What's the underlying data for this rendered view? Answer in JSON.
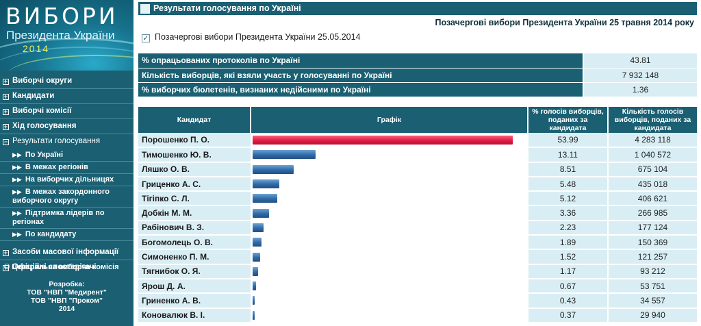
{
  "logo": {
    "title": "ВИБОРИ",
    "subtitle": "Президента України",
    "year": "2014"
  },
  "sidebar": {
    "items": [
      {
        "label": "Виборчі округи",
        "expander": "+"
      },
      {
        "label": "Кандидати",
        "expander": "+"
      },
      {
        "label": "Виборчі комісії",
        "expander": "+"
      },
      {
        "label": "Хід голосування",
        "expander": "+"
      },
      {
        "label": "Результати голосування",
        "expander": "−"
      }
    ],
    "subitems": [
      "По Україні",
      "В межах регіонів",
      "На виборчих дільницях",
      "В межах закордонного виборчого округу",
      "Підтримка лідерів по регіонах",
      "По кандидату"
    ],
    "bottom_items": [
      {
        "label": "Засоби масової інформації",
        "expander": "+"
      },
      {
        "label": "Офіційні спостерігачі",
        "expander": "+"
      }
    ],
    "copyright": "© Центральна виборча комісія",
    "credits": [
      "Розробка:",
      "ТОВ \"НВП \"Медирент\"",
      "ТОВ \"НВП \"Проком\"",
      "2014"
    ]
  },
  "header": {
    "title": "Результати голосування по Україні",
    "election_title": "Позачергові вибори Президента України 25 травня 2014 року",
    "election_checkbox": "Позачергові вибори Президента України 25.05.2014"
  },
  "stats": [
    {
      "label": "% опрацьованих протоколів по Україні",
      "value": "43.81"
    },
    {
      "label": "Кількість виборців, які взяли участь у голосуванні по Україні",
      "value": "7 932 148"
    },
    {
      "label": "% виборчих бюлетенів, визнаних недійсними по Україні",
      "value": "1.36"
    }
  ],
  "table_headers": {
    "candidate": "Кандидат",
    "graph": "Графік",
    "percent": "% голосів виборців, поданих за кандидата",
    "count": "Кількість голосів виборців, поданих за кандидата"
  },
  "colors": {
    "brand": "#1a5f72",
    "row_bg": "#d9eef4",
    "bar": "#2e6aa8",
    "bar_leader": "#e01e45"
  },
  "chart_data": {
    "type": "bar",
    "orientation": "horizontal",
    "categories": [
      "Порошенко П. О.",
      "Тимошенко Ю. В.",
      "Ляшко О. В.",
      "Гриценко А. С.",
      "Тігіпко С. Л.",
      "Добкін М. М.",
      "Рабінович В. З.",
      "Богомолець О. В.",
      "Симоненко П. М.",
      "Тягнибок О. Я.",
      "Ярош Д. А.",
      "Гриненко А. В.",
      "Коновалюк В. І."
    ],
    "series": [
      {
        "values": [
          53.99,
          13.11,
          8.51,
          5.48,
          5.12,
          3.36,
          2.23,
          1.89,
          1.52,
          1.17,
          0.67,
          0.43,
          0.37
        ]
      }
    ],
    "percent_labels": [
      "53.99",
      "13.11",
      "8.51",
      "5.48",
      "5.12",
      "3.36",
      "2.23",
      "1.89",
      "1.52",
      "1.17",
      "0.67",
      "0.43",
      "0.37"
    ],
    "votes": [
      "4 283 118",
      "1 040 572",
      "675 104",
      "435 018",
      "406 621",
      "266 985",
      "177 124",
      "150 369",
      "121 257",
      "93 212",
      "53 751",
      "34 557",
      "29 940"
    ],
    "xlim": [
      0,
      54
    ]
  }
}
